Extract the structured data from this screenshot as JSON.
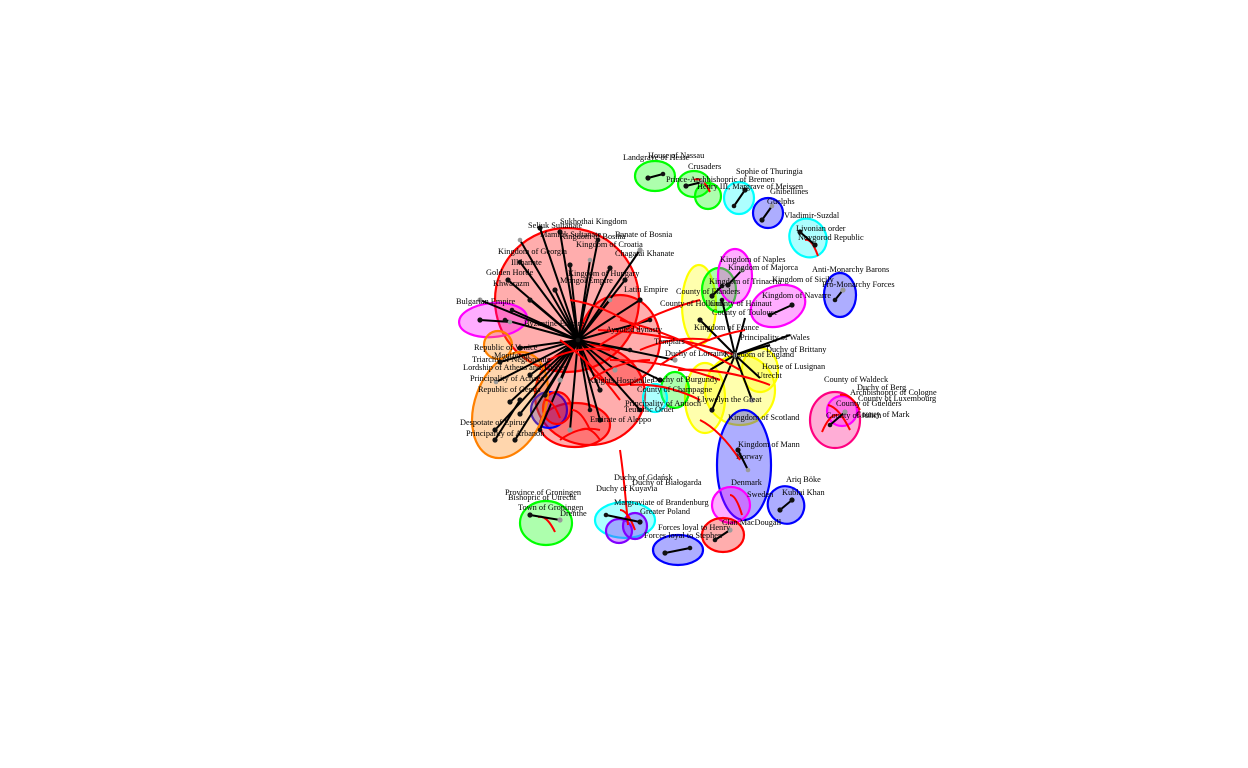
{
  "graph": {
    "hull_colors": [
      "#ff0000",
      "#00ff00",
      "#0000ff",
      "#ff00ff",
      "#00ffff",
      "#ffff00",
      "#ff8000",
      "#ff0080",
      "#8000ff"
    ],
    "edge_colors": {
      "conflict": "#ff0000",
      "member": "#000000"
    },
    "labels": [
      "Landgrave of Hesse",
      "House of Nassau",
      "Crusaders",
      "Sophie of Thuringia",
      "Prince-Archbishopric of Bremen",
      "Henry III, Margrave of Meissen",
      "Ghibellines",
      "Guelphs",
      "Vladimir-Suzdal",
      "Livonian order",
      "Novgorod Republic",
      "Anti-Monarchy Barons",
      "Pro-Monarchy Forces",
      "Kingdom of Naples",
      "Kingdom of Majorca",
      "Kingdom of Trinacria",
      "Kingdom of Sicily",
      "Kingdom of Navarre",
      "County of Flanders",
      "County of Hainaut",
      "County of Toulouse",
      "Kingdom of Hungary",
      "Kingdom of Bosnia",
      "Kingdom of Croatia",
      "Banate of Bosnia",
      "Chagatai Khanate",
      "Sukhothai Kingdom",
      "Principality of Wales",
      "Duchy of Brittany",
      "Kingdom of England",
      "Kingdom of France",
      "House of Lusignan",
      "Duchy of Lorraine",
      "Duchy of Burgundy",
      "County of Champagne",
      "County of Holland",
      "Utrecht",
      "Llywelyn the Great",
      "Kingdom of Scotland",
      "Bulgarian Empire",
      "Byzantine Empire",
      "Republic of Venice",
      "Republic of Genoa",
      "Knights Hospitaller",
      "Teutonic Order",
      "Principality of Antioch",
      "Emirate of Aleppo",
      "Templars",
      "Montferrat",
      "Triarchy of Negroponte",
      "Lordship of Athens and Thebes",
      "Principality of Achaea",
      "Despotate of Epirus",
      "Principality of Arbanon",
      "County of Waldeck",
      "Duchy of Berg",
      "Archbishopric of Cologne",
      "County of Luxembourg",
      "County of Guelders",
      "County of Mark",
      "County of Jülich",
      "Kingdom of Mann",
      "Norway",
      "Denmark",
      "Sweden",
      "Ariq Böke",
      "Kublai Khan",
      "Duchy of Gdańsk",
      "Duchy of Białogarda",
      "Duchy of Kuyavia",
      "Greater Poland",
      "Margraviate of Brandenburg",
      "Province of Groningen",
      "Bishopric of Utrecht",
      "Town of Groningen",
      "Drenthe",
      "Forces loyal to Henry",
      "Forces loyal to Stephen",
      "Clan MacDougall",
      "Mongol Empire",
      "Khwarazm",
      "Golden Horde",
      "Ilkhanate",
      "Kingdom of Georgia",
      "Seljuk Sultanate",
      "Mamluk Sultanate",
      "Ayyubid dynasty",
      "Latin Empire"
    ]
  }
}
